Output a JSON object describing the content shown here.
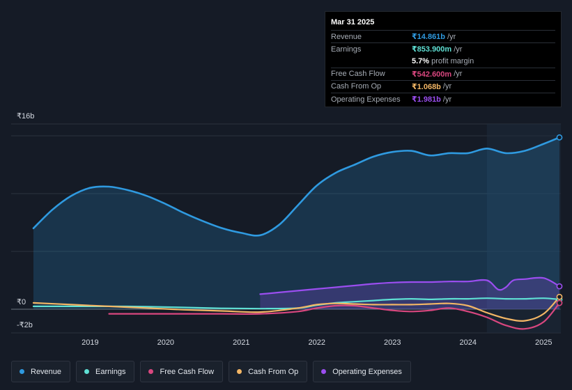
{
  "tooltip": {
    "date": "Mar 31 2025",
    "rows": [
      {
        "label": "Revenue",
        "value": "₹14.861b",
        "unit": "/yr",
        "color": "#2f9ae0"
      },
      {
        "label": "Earnings",
        "value": "₹853.900m",
        "unit": "/yr",
        "color": "#5fe0d4"
      },
      {
        "label": "",
        "value": "5.7%",
        "unit": "profit margin",
        "color": "#ffffff"
      },
      {
        "label": "Free Cash Flow",
        "value": "₹542.600m",
        "unit": "/yr",
        "color": "#d9477f"
      },
      {
        "label": "Cash From Op",
        "value": "₹1.068b",
        "unit": "/yr",
        "color": "#f3b665"
      },
      {
        "label": "Operating Expenses",
        "value": "₹1.981b",
        "unit": "/yr",
        "color": "#9b4ef0"
      }
    ]
  },
  "legend": [
    {
      "label": "Revenue",
      "color": "#2f9ae0"
    },
    {
      "label": "Earnings",
      "color": "#5fe0d4"
    },
    {
      "label": "Free Cash Flow",
      "color": "#d9477f"
    },
    {
      "label": "Cash From Op",
      "color": "#f3b665"
    },
    {
      "label": "Operating Expenses",
      "color": "#9b4ef0"
    }
  ],
  "chart_data": {
    "type": "area",
    "y_tick_labels": [
      "₹16b",
      "₹0",
      "-₹2b"
    ],
    "x_tick_labels": [
      "2019",
      "2020",
      "2021",
      "2022",
      "2023",
      "2024",
      "2025"
    ],
    "ylim": [
      -4,
      16
    ],
    "units": "₹ billions",
    "forecast_shade_start": 2024.25,
    "series": [
      {
        "name": "Revenue",
        "color": "#2f9ae0",
        "fill": true,
        "x": [
          2018.25,
          2018.5,
          2018.75,
          2019.0,
          2019.25,
          2019.5,
          2019.75,
          2020.0,
          2020.25,
          2020.5,
          2020.75,
          2021.0,
          2021.25,
          2021.5,
          2021.75,
          2022.0,
          2022.25,
          2022.5,
          2022.75,
          2023.0,
          2023.25,
          2023.5,
          2023.75,
          2024.0,
          2024.25,
          2024.5,
          2024.75,
          2025.0,
          2025.21
        ],
        "y": [
          7.0,
          8.6,
          9.8,
          10.5,
          10.6,
          10.3,
          9.8,
          9.1,
          8.3,
          7.6,
          7.0,
          6.6,
          6.4,
          7.3,
          9.0,
          10.7,
          11.8,
          12.5,
          13.2,
          13.6,
          13.7,
          13.3,
          13.5,
          13.5,
          13.9,
          13.5,
          13.7,
          14.3,
          14.86
        ]
      },
      {
        "name": "Earnings",
        "color": "#5fe0d4",
        "fill": false,
        "x": [
          2018.25,
          2018.75,
          2019.25,
          2019.75,
          2020.25,
          2020.75,
          2021.25,
          2021.75,
          2022.0,
          2022.25,
          2022.5,
          2022.75,
          2023.0,
          2023.25,
          2023.5,
          2023.75,
          2024.0,
          2024.25,
          2024.5,
          2024.75,
          2025.0,
          2025.21
        ],
        "y": [
          0.25,
          0.25,
          0.25,
          0.22,
          0.15,
          0.08,
          0.05,
          0.1,
          0.35,
          0.55,
          0.65,
          0.75,
          0.85,
          0.9,
          0.85,
          0.9,
          0.9,
          0.95,
          0.9,
          0.9,
          0.95,
          0.85
        ]
      },
      {
        "name": "Free Cash Flow",
        "color": "#d9477f",
        "fill": false,
        "x": [
          2019.25,
          2019.75,
          2020.25,
          2020.75,
          2021.25,
          2021.75,
          2022.0,
          2022.25,
          2022.5,
          2022.75,
          2023.0,
          2023.25,
          2023.5,
          2023.75,
          2024.0,
          2024.25,
          2024.5,
          2024.75,
          2025.0,
          2025.21
        ],
        "y": [
          -0.4,
          -0.4,
          -0.4,
          -0.4,
          -0.4,
          -0.2,
          0.1,
          0.3,
          0.3,
          0.1,
          -0.1,
          -0.2,
          -0.1,
          0.1,
          -0.2,
          -0.7,
          -1.4,
          -1.7,
          -1.1,
          0.54
        ]
      },
      {
        "name": "Cash From Op",
        "color": "#f3b665",
        "fill": false,
        "x": [
          2018.25,
          2018.75,
          2019.25,
          2019.75,
          2020.25,
          2020.75,
          2021.25,
          2021.75,
          2022.0,
          2022.25,
          2022.5,
          2022.75,
          2023.0,
          2023.25,
          2023.5,
          2023.75,
          2024.0,
          2024.25,
          2024.5,
          2024.75,
          2025.0,
          2025.21
        ],
        "y": [
          0.55,
          0.4,
          0.25,
          0.1,
          -0.05,
          -0.15,
          -0.25,
          0.1,
          0.4,
          0.5,
          0.45,
          0.4,
          0.4,
          0.4,
          0.45,
          0.5,
          0.3,
          -0.3,
          -0.8,
          -1.0,
          -0.4,
          1.07
        ]
      },
      {
        "name": "Operating Expenses",
        "color": "#9b4ef0",
        "fill": true,
        "x": [
          2021.25,
          2021.5,
          2021.75,
          2022.0,
          2022.25,
          2022.5,
          2022.75,
          2023.0,
          2023.25,
          2023.5,
          2023.75,
          2024.0,
          2024.25,
          2024.4,
          2024.5,
          2024.6,
          2024.75,
          2025.0,
          2025.21
        ],
        "y": [
          1.3,
          1.45,
          1.6,
          1.75,
          1.9,
          2.05,
          2.2,
          2.3,
          2.35,
          2.35,
          2.4,
          2.4,
          2.5,
          1.7,
          1.9,
          2.5,
          2.6,
          2.7,
          1.98
        ]
      }
    ]
  }
}
